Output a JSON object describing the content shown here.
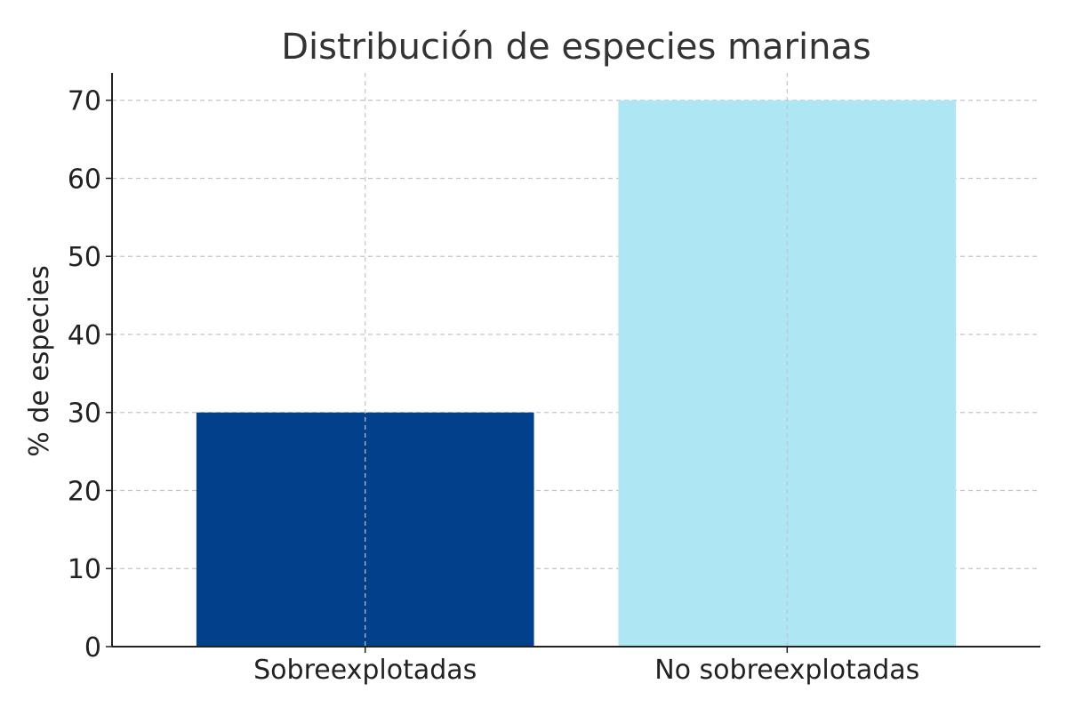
{
  "chart_data": {
    "type": "bar",
    "title": "Distribución de especies marinas",
    "xlabel": "",
    "ylabel": "% de especies",
    "categories": [
      "Sobreexplotadas",
      "No sobreexplotadas"
    ],
    "values": [
      30,
      70
    ],
    "colors": [
      "#03408b",
      "#aee7f3"
    ],
    "ylim": [
      0,
      73.5
    ],
    "yticks": [
      0,
      10,
      20,
      30,
      40,
      50,
      60,
      70
    ],
    "grid": true,
    "legend": "none"
  }
}
